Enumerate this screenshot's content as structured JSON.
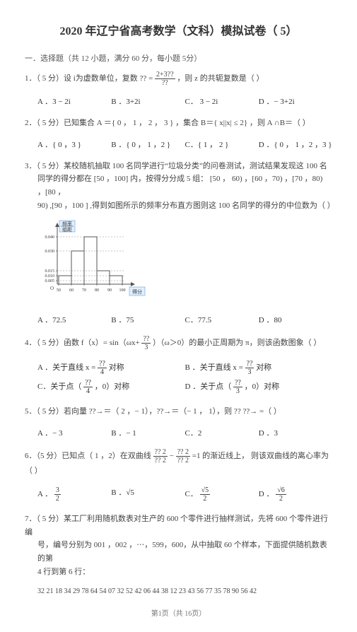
{
  "title": "2020 年辽宁省高考数学（文科）模拟试卷（    5）",
  "section1": "一．选择题（共    12 小题，满分    60 分，每小题   5分）",
  "q1": {
    "text": "1．（ 5 分）设 i为虚数单位，复数   ?? = ",
    "frac_num": "2+3??",
    "frac_den": "??",
    "tail": " ，则 z 的共轭复数是（        ）",
    "opts": [
      "A ．3 − 2i",
      "B ．3+2i",
      "C． 3 − 2i",
      "D ．− 3+2i"
    ]
  },
  "q2": {
    "text": "2．（ 5 分）已知集合    A ＝{ 0 ， 1 ， 2 ， 3 } ，集合    B＝{ x||x| ≤ 2} ，则   A ∩B＝（        ）",
    "opts": [
      "A ．{ 0 ，3 }",
      "B ．{ 0 ， 1 ，2 }",
      "C．{ 1 ， 2 }",
      "D ．{ 0 ，   1 ，2 ，3 }"
    ]
  },
  "q3": {
    "p1": "3．（ 5 分）某校随机抽取       100  名同学进行“垃圾分类”的问卷测试，测试结果发现这              100  名",
    "p2": "同学的得分都在     [50 ，100]   内，按得分分成      5 组：   [50 ， 60)  ，[60 ，70)  ，[70 ，80)  ，[80 ，",
    "p3": "90)  ,[90 ，100 ] ,得到如图所示的频率分布直方图则这            100  名同学的得分的中位数为（         ）",
    "opts": [
      "A ．72.5",
      "B ．75",
      "C．77.5",
      "D ．80"
    ]
  },
  "chart": {
    "ylabel_top": "频率",
    "ylabel_bottom": "组距",
    "ytick_values": [
      0.005,
      0.01,
      0.015,
      0.03,
      0.04
    ],
    "ytick_positions": [
      87,
      80,
      73,
      45,
      25
    ],
    "xticks": [
      "50",
      "60",
      "70",
      "80",
      "90",
      "100"
    ],
    "xtick_positions": [
      30,
      48,
      66,
      84,
      102,
      120
    ],
    "xlabel": "得分",
    "bars": [
      {
        "x": 30,
        "w": 18,
        "y": 80,
        "h": 12
      },
      {
        "x": 48,
        "w": 18,
        "y": 45,
        "h": 47
      },
      {
        "x": 66,
        "w": 18,
        "y": 25,
        "h": 67
      },
      {
        "x": 84,
        "w": 18,
        "y": 73,
        "h": 19
      },
      {
        "x": 102,
        "w": 18,
        "y": 80,
        "h": 12
      }
    ],
    "axis_color": "#555",
    "dash_color": "#888",
    "box_fill": "#dfefff",
    "box_stroke": "#6aa0d6"
  },
  "q4": {
    "p1a": "4．（ 5 分）函数   f（x）= sin（ωx+",
    "p1_frac_num": "??",
    "p1_frac_den": "3",
    "p1b": "）（ω＞0）的最小正周期为        π，则该函数图象（         ）",
    "optA_a": "A ．关于直线   x = ",
    "optA_num": "??",
    "optA_den": "4",
    "optA_b": "对称",
    "optB_a": "B ．关于直线   x = ",
    "optB_num": "??",
    "optB_den": "3",
    "optB_b": "对称",
    "optC_a": "C．关于点（",
    "optC_num": "??",
    "optC_den": "4",
    "optC_b": "，0）对称",
    "optD_a": "D ．关于点（",
    "optD_num": "??",
    "optD_den": "3",
    "optD_b": "，0）对称"
  },
  "q5": {
    "text": "5．（ 5 分）若向量  ??→＝（ 2 ，− 1），??→＝（− 1 ， 1），则 ?? ??→ =（              ）",
    "opts": [
      "A ．− 3",
      "B ．− 1",
      "C．2",
      "D ．3"
    ]
  },
  "q6": {
    "p1a": "6．（5 分）已知点（ 1 ，2）在双曲线    ",
    "fr1n": "?? 2",
    "fr1d": "?? 2",
    "mid": " − ",
    "fr2n": "?? 2",
    "fr2d": "?? 2",
    "p1b": " =1 的渐近线上，  则该双曲线的离心率为（   ）",
    "optA_num": "3",
    "optA_den": "2",
    "optA_label": "A ．",
    "optB_label": "B ．√5",
    "optC_label": "C．",
    "optC_num": "√5",
    "optC_den": "2",
    "optD_label": "D ．",
    "optD_num": "√6",
    "optD_den": "2"
  },
  "q7": {
    "p1": "7．（ 5 分）某工厂利用随机数表对生产的             600  个零件进行抽样测试，先将            600 个零件进行编",
    "p2": "号，编号分别为     001 ，002 ，⋯，599，600，从中抽取         60 个样本，下面提供随机数表的第",
    "p3": "4 行到第 6 行：",
    "row": "32 21 18 34 29 78 64 54 07 32 52 42 06 44 38 12 23 43 56 77 35 78 90 56 42"
  },
  "footer": "第1页（共 16页）"
}
